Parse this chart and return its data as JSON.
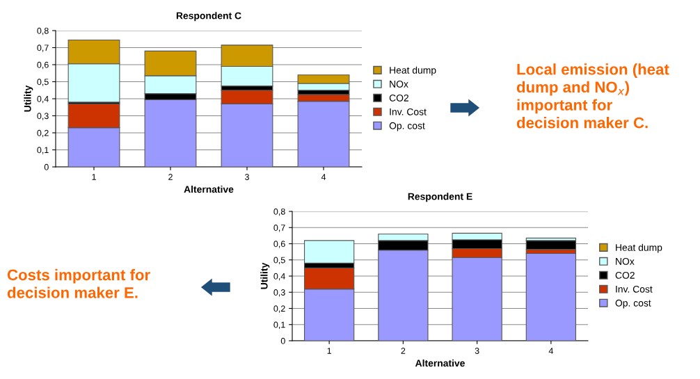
{
  "chart_data": [
    {
      "type": "bar",
      "stacked": true,
      "title": "Respondent C",
      "xlabel": "Alternative",
      "ylabel": "Utility",
      "categories": [
        "1",
        "2",
        "3",
        "4"
      ],
      "series": [
        {
          "name": "Op. cost",
          "color": "#9999ff",
          "values": [
            0.23,
            0.395,
            0.37,
            0.385
          ]
        },
        {
          "name": "Inv. Cost",
          "color": "#cc3300",
          "values": [
            0.14,
            null,
            0.08,
            0.04
          ]
        },
        {
          "name": "CO2",
          "color": "#000000",
          "values": [
            0.01,
            0.035,
            0.025,
            0.025
          ]
        },
        {
          "name": "NOx",
          "color": "#ccffff",
          "values": [
            0.225,
            0.105,
            0.115,
            0.04
          ]
        },
        {
          "name": "Heat dump",
          "color": "#cc9900",
          "values": [
            0.14,
            0.145,
            0.125,
            0.05
          ]
        }
      ],
      "ylim": [
        0,
        0.8
      ],
      "yticks": [
        {
          "value": 0,
          "label": "0"
        },
        {
          "value": 0.1,
          "label": "0,1"
        },
        {
          "value": 0.2,
          "label": "0,2"
        },
        {
          "value": 0.3,
          "label": "0,3"
        },
        {
          "value": 0.4,
          "label": "0,4"
        },
        {
          "value": 0.5,
          "label": "0,5"
        },
        {
          "value": 0.6,
          "label": "0,6"
        },
        {
          "value": 0.7,
          "label": "0,7"
        },
        {
          "value": 0.8,
          "label": "0,8"
        }
      ],
      "grid": "y",
      "legend": "right",
      "annotations": [
        "Local emission (heat\ndump and NO$_{x}$)\nimportant for\ndecision maker C."
      ]
    },
    {
      "type": "bar",
      "stacked": true,
      "title": "Respondent E",
      "xlabel": "Alternative",
      "ylabel": "Utility",
      "categories": [
        "1",
        "2",
        "3",
        "4"
      ],
      "series": [
        {
          "name": "Op. cost",
          "color": "#9999ff",
          "values": [
            0.32,
            0.56,
            0.515,
            0.54
          ]
        },
        {
          "name": "Inv. Cost",
          "color": "#cc3300",
          "values": [
            0.13,
            null,
            0.055,
            0.025
          ]
        },
        {
          "name": "CO2",
          "color": "#000000",
          "values": [
            0.03,
            0.06,
            0.055,
            0.055
          ]
        },
        {
          "name": "NOx",
          "color": "#ccffff",
          "values": [
            0.14,
            0.04,
            0.04,
            0.015
          ]
        },
        {
          "name": "Heat dump",
          "color": "#cc9900",
          "values": [
            null,
            null,
            null,
            null
          ]
        }
      ],
      "ylim": [
        0,
        0.8
      ],
      "yticks": [
        {
          "value": 0,
          "label": "0"
        },
        {
          "value": 0.1,
          "label": "0,1"
        },
        {
          "value": 0.2,
          "label": "0,2"
        },
        {
          "value": 0.3,
          "label": "0,3"
        },
        {
          "value": 0.4,
          "label": "0,4"
        },
        {
          "value": 0.5,
          "label": "0,5"
        },
        {
          "value": 0.6,
          "label": "0,6"
        },
        {
          "value": 0.7,
          "label": "0,7"
        },
        {
          "value": 0.8,
          "label": "0,8"
        }
      ],
      "grid": "y",
      "legend": "right",
      "annotations": [
        "Costs important for\ndecision maker E."
      ]
    }
  ]
}
